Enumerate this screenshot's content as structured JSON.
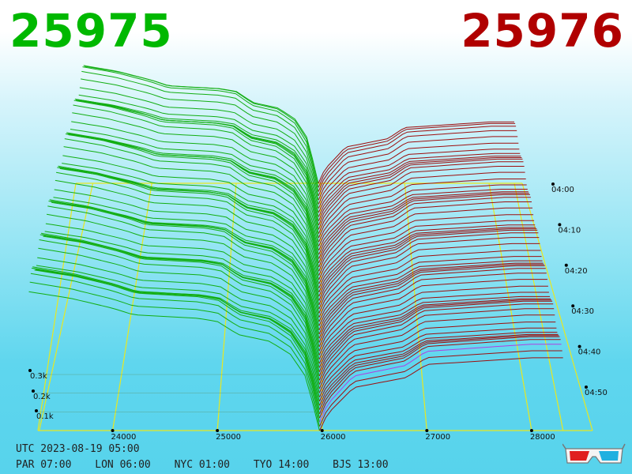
{
  "prices": {
    "bid": "25975",
    "ask": "25976"
  },
  "colors": {
    "bid": "#00b800",
    "ask": "#b00000",
    "bid_line": "#12ae12",
    "ask_line": "#9e0e0e",
    "grid": "#e8e820",
    "accent_line": "#b040e0",
    "axis_marker": "#000000"
  },
  "chart_data": {
    "type": "area",
    "title": "",
    "xlabel": "",
    "ylabel": "",
    "x_axis": {
      "ticks": [
        "24000",
        "25000",
        "26000",
        "27000",
        "28000"
      ]
    },
    "z_axis": {
      "ticks": [
        "0.1k",
        "0.2k",
        "0.3k"
      ]
    },
    "time_axis": {
      "ticks": [
        "04:00",
        "04:10",
        "04:20",
        "04:30",
        "04:40",
        "04:50"
      ]
    },
    "mid_price": 25975.5,
    "depth_profile": {
      "bid_prices": [
        23200,
        23600,
        24000,
        24200,
        24800,
        25000,
        25200,
        25500,
        25700,
        25850,
        25975
      ],
      "bid_cumulative": [
        0.42,
        0.4,
        0.37,
        0.35,
        0.34,
        0.33,
        0.29,
        0.27,
        0.23,
        0.16,
        0.0
      ],
      "ask_prices": [
        25976,
        26050,
        26300,
        26800,
        27000,
        27500,
        28000,
        28300
      ],
      "ask_cumulative": [
        0.0,
        0.05,
        0.13,
        0.16,
        0.2,
        0.21,
        0.22,
        0.22
      ]
    },
    "snapshot_count": 60,
    "grid": true
  },
  "footer": {
    "utc": "UTC 2023-08-19 05:00",
    "zones": [
      "PAR 07:00",
      "LON 06:00",
      "NYC 01:00",
      "TYO 14:00",
      "BJS 13:00"
    ]
  },
  "icons": {
    "glasses": "3d-glasses-icon"
  }
}
